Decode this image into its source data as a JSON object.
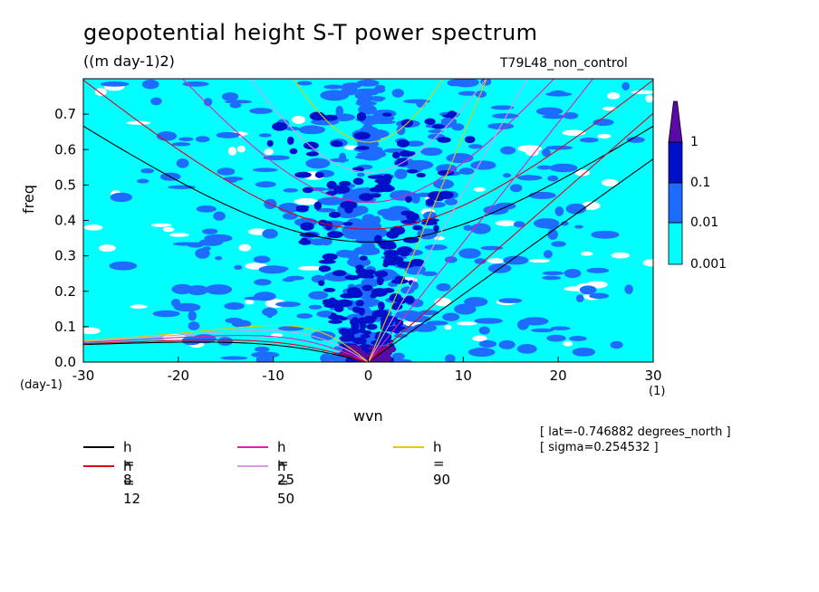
{
  "chart_data": {
    "type": "heatmap",
    "title": "geopotential height S-T power spectrum",
    "units": "((m day-1)2)",
    "run_label": "T79L48_non_control",
    "xlabel": "wvn",
    "ylabel": "freq",
    "x_unit": "(1)",
    "y_unit": "(day-1)",
    "xlim": [
      -30,
      30
    ],
    "ylim": [
      0,
      0.8
    ],
    "x_ticks": [
      "-30",
      "-20",
      "-10",
      "0",
      "10",
      "20",
      "30"
    ],
    "y_ticks": [
      "0.0",
      "0.1",
      "0.2",
      "0.3",
      "0.4",
      "0.5",
      "0.6",
      "0.7"
    ],
    "contour_levels": [
      "0.001",
      "0.01",
      "0.1",
      "1"
    ],
    "level_colors": [
      "#00ffff",
      "#1e6cff",
      "#0010c8",
      "#5a0aa6"
    ],
    "dispersion_curves": [
      {
        "label": "h =  8",
        "h": 8,
        "color": "#000000"
      },
      {
        "label": "h = 12",
        "h": 12,
        "color": "#e0001e"
      },
      {
        "label": "h = 25",
        "h": 25,
        "color": "#e61fb4"
      },
      {
        "label": "h = 50",
        "h": 50,
        "color": "#d79be6"
      },
      {
        "label": "h = 90",
        "h": 90,
        "color": "#e6c800"
      }
    ],
    "annotations": [
      "[ lat=-0.746882 degrees_north ]",
      "[ sigma=0.254532 ]"
    ]
  }
}
